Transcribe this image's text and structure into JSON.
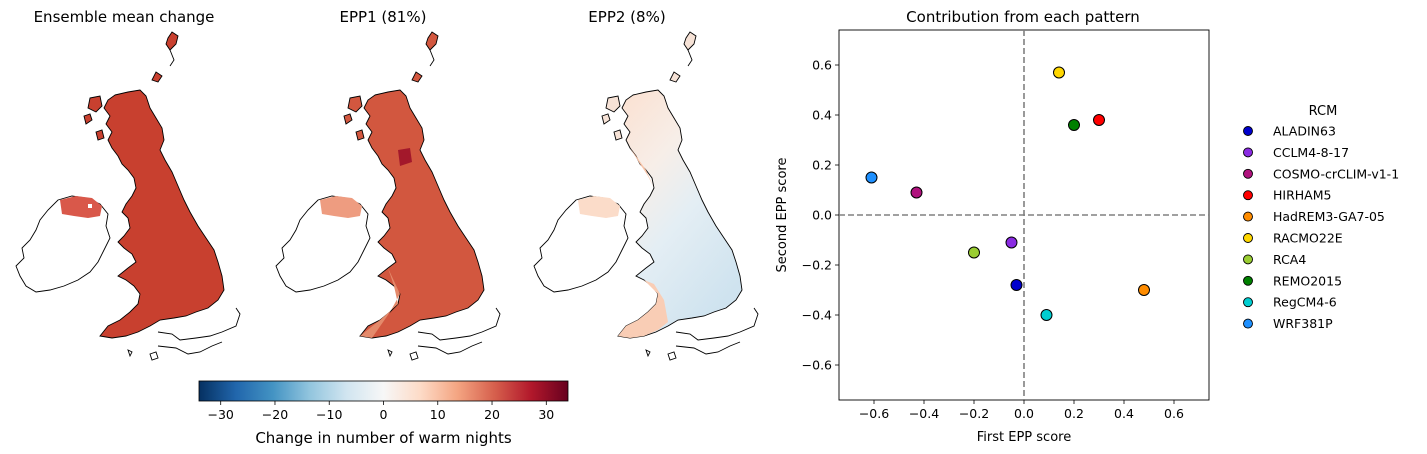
{
  "maps": [
    {
      "title": "Ensemble mean change",
      "style": "mean"
    },
    {
      "title": "EPP1 (81%)",
      "style": "epp1"
    },
    {
      "title": "EPP2 (8%)",
      "style": "epp2"
    }
  ],
  "colorbar": {
    "label": "Change in number of warm nights",
    "range": [
      -34,
      34
    ],
    "ticks": [
      "−30",
      "−20",
      "−10",
      "0",
      "10",
      "20",
      "30"
    ],
    "tick_values": [
      -30,
      -20,
      -10,
      0,
      10,
      20,
      30
    ],
    "colormap": "RdBu_r"
  },
  "chart_data": {
    "type": "scatter",
    "title": "Contribution from each pattern",
    "xlabel": "First EPP score",
    "ylabel": "Second EPP score",
    "xlim": [
      -0.74,
      0.74
    ],
    "ylim": [
      -0.74,
      0.74
    ],
    "xticks": [
      -0.6,
      -0.4,
      -0.2,
      0.0,
      0.2,
      0.4,
      0.6
    ],
    "yticks": [
      -0.6,
      -0.4,
      -0.2,
      0.0,
      0.2,
      0.4,
      0.6
    ],
    "xtick_labels": [
      "−0.6",
      "−0.4",
      "−0.2",
      "0.0",
      "0.2",
      "0.4",
      "0.6"
    ],
    "ytick_labels": [
      "−0.6",
      "−0.4",
      "−0.2",
      "0.0",
      "0.2",
      "0.4",
      "0.6"
    ],
    "reference_lines": {
      "x": 0,
      "y": 0,
      "style": "dashed",
      "color": "#808080"
    },
    "legend_title": "RCM",
    "legend_position": "outside-right",
    "series": [
      {
        "name": "ALADIN63",
        "color": "#0000cd",
        "x": -0.03,
        "y": -0.28
      },
      {
        "name": "CCLM4-8-17",
        "color": "#8a2be2",
        "x": -0.05,
        "y": -0.11
      },
      {
        "name": "COSMO-crCLIM-v1-1",
        "color": "#b0127e",
        "x": -0.43,
        "y": 0.09
      },
      {
        "name": "HIRHAM5",
        "color": "#ff0000",
        "x": 0.3,
        "y": 0.38
      },
      {
        "name": "HadREM3-GA7-05",
        "color": "#ff8c00",
        "x": 0.48,
        "y": -0.3
      },
      {
        "name": "RACMO22E",
        "color": "#ffd700",
        "x": 0.14,
        "y": 0.57
      },
      {
        "name": "RCA4",
        "color": "#9acd32",
        "x": -0.2,
        "y": -0.15
      },
      {
        "name": "REMO2015",
        "color": "#008000",
        "x": 0.2,
        "y": 0.36
      },
      {
        "name": "RegCM4-6",
        "color": "#00ced1",
        "x": 0.09,
        "y": -0.4
      },
      {
        "name": "WRF381P",
        "color": "#1e90ff",
        "x": -0.61,
        "y": 0.15
      }
    ]
  }
}
